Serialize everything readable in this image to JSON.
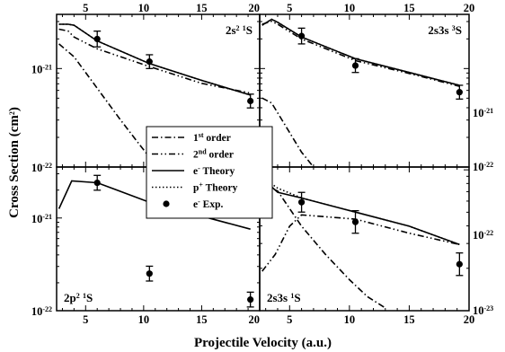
{
  "chart_data": {
    "type": "line",
    "xlabel": "Projectile Velocity (a.u.)",
    "ylabel_parts": [
      "Cross Section (cm",
      "2",
      ")"
    ],
    "x_ticks": [
      "5",
      "10",
      "15",
      "20"
    ],
    "x_range": [
      2.5,
      20
    ],
    "legend": [
      {
        "key": "first",
        "pre": "1",
        "sup": "st",
        "post": " order",
        "style": "dash-dot"
      },
      {
        "key": "second",
        "pre": "2",
        "sup": "nd",
        "post": " order",
        "style": "dash-dot-dot"
      },
      {
        "key": "e_theory",
        "pre": "e",
        "sup": "-",
        "post": " Theory",
        "style": "solid"
      },
      {
        "key": "p_theory",
        "pre": "p",
        "sup": "+",
        "post": " Theory",
        "style": "dotted"
      },
      {
        "key": "e_exp",
        "pre": "e",
        "sup": "-",
        "post": "  Exp.",
        "style": "marker"
      }
    ],
    "panels": [
      {
        "id": "tl",
        "col": 0,
        "row": 0,
        "label": {
          "pre": "2s",
          "sup1": "2",
          "mid": " ",
          "sup2": "1",
          "post": "S"
        },
        "label_pos": "top-right",
        "ylim_exp": [
          -22,
          -20.45
        ],
        "y_tick_labels": [
          {
            "exp": -21,
            "base": "10",
            "sup": "-21"
          }
        ],
        "series": {
          "first": [
            [
              2.7,
              -20.75
            ],
            [
              4,
              -20.88
            ],
            [
              6,
              -21.2
            ],
            [
              8,
              -21.52
            ],
            [
              9.5,
              -21.75
            ],
            [
              10.5,
              -21.9
            ],
            [
              11.3,
              -22.0
            ]
          ],
          "second": [
            [
              2.7,
              -20.6
            ],
            [
              3.5,
              -20.62
            ],
            [
              4,
              -20.68
            ],
            [
              6,
              -20.8
            ],
            [
              10.5,
              -20.98
            ],
            [
              15,
              -21.15
            ],
            [
              19.2,
              -21.25
            ]
          ],
          "e_theory": [
            [
              2.7,
              -20.55
            ],
            [
              3.5,
              -20.55
            ],
            [
              4,
              -20.56
            ],
            [
              6,
              -20.72
            ],
            [
              10.5,
              -20.95
            ],
            [
              15,
              -21.12
            ],
            [
              19.2,
              -21.27
            ]
          ],
          "p_theory": [
            [
              2.7,
              -20.55
            ],
            [
              3.5,
              -20.55
            ],
            [
              4,
              -20.56
            ],
            [
              6,
              -20.72
            ],
            [
              10.5,
              -20.95
            ],
            [
              15,
              -21.12
            ],
            [
              19.2,
              -21.27
            ]
          ],
          "e_exp": [
            {
              "x": 6,
              "y": -20.7,
              "err": 0.08
            },
            {
              "x": 10.5,
              "y": -20.93,
              "err": 0.07
            },
            {
              "x": 19.2,
              "y": -21.33,
              "err": 0.07
            }
          ]
        }
      },
      {
        "id": "tr",
        "col": 1,
        "row": 0,
        "label": {
          "pre": "2s3s ",
          "sup1": "",
          "mid": "",
          "sup2": "3",
          "post": "S"
        },
        "label_pos": "top-right",
        "ylim_exp": [
          -22,
          -20.45
        ],
        "y_tick_labels": [
          {
            "exp": -21,
            "base": "10",
            "sup": "-21"
          }
        ],
        "series": {
          "first": [
            [
              2.7,
              -21.3
            ],
            [
              3.5,
              -21.35
            ],
            [
              4,
              -21.45
            ],
            [
              5,
              -21.65
            ],
            [
              6,
              -21.85
            ],
            [
              7,
              -22.0
            ]
          ],
          "second": [
            [
              2.7,
              -20.55
            ],
            [
              3.5,
              -20.52
            ],
            [
              4,
              -20.55
            ],
            [
              6,
              -20.7
            ],
            [
              10.5,
              -20.92
            ],
            [
              15,
              -21.05
            ],
            [
              19.2,
              -21.18
            ]
          ],
          "e_theory": [
            [
              2.7,
              -20.56
            ],
            [
              3.5,
              -20.5
            ],
            [
              4,
              -20.53
            ],
            [
              6,
              -20.68
            ],
            [
              10.5,
              -20.9
            ],
            [
              15,
              -21.04
            ],
            [
              19.2,
              -21.17
            ]
          ],
          "p_theory": [
            [
              2.7,
              -20.56
            ],
            [
              3.5,
              -20.5
            ],
            [
              4,
              -20.53
            ],
            [
              6,
              -20.68
            ],
            [
              10.5,
              -20.9
            ],
            [
              15,
              -21.04
            ],
            [
              19.2,
              -21.17
            ]
          ],
          "e_exp": [
            {
              "x": 6,
              "y": -20.67,
              "err": 0.08
            },
            {
              "x": 10.5,
              "y": -20.97,
              "err": 0.07
            },
            {
              "x": 19.2,
              "y": -21.24,
              "err": 0.07
            }
          ]
        }
      },
      {
        "id": "bl",
        "col": 0,
        "row": 1,
        "label": {
          "pre": "2p",
          "sup1": "2",
          "mid": " ",
          "sup2": "1",
          "post": "S"
        },
        "label_pos": "bottom-left",
        "ylim_exp": [
          -22,
          -20.45
        ],
        "y_tick_labels": [
          {
            "exp": -21,
            "base": "10",
            "sup": "-21"
          },
          {
            "exp": -22,
            "base": "10",
            "sup": "-22"
          }
        ],
        "series": {
          "e_theory": [
            [
              2.7,
              -20.9
            ],
            [
              3.8,
              -20.6
            ],
            [
              6,
              -20.62
            ],
            [
              10.5,
              -20.83
            ],
            [
              15,
              -20.98
            ],
            [
              19.2,
              -21.12
            ]
          ],
          "e_exp": [
            {
              "x": 6,
              "y": -20.62,
              "err": 0.08
            },
            {
              "x": 10.5,
              "y": -21.6,
              "err": 0.08
            },
            {
              "x": 19.2,
              "y": -21.88,
              "err": 0.08
            }
          ]
        }
      },
      {
        "id": "br",
        "col": 1,
        "row": 1,
        "label": {
          "pre": "2s3s ",
          "sup1": "",
          "mid": "",
          "sup2": "1",
          "post": "S"
        },
        "label_pos": "bottom-left",
        "ylim_exp": [
          -23,
          -21.98
        ],
        "y_tick_labels": [],
        "series": {
          "first": [
            [
              2.7,
              -22.1
            ],
            [
              4,
              -22.15
            ],
            [
              6,
              -22.4
            ],
            [
              8,
              -22.6
            ],
            [
              10,
              -22.78
            ],
            [
              11.5,
              -22.9
            ],
            [
              13,
              -22.98
            ]
          ],
          "second": [
            [
              2.7,
              -22.72
            ],
            [
              3.8,
              -22.6
            ],
            [
              5,
              -22.4
            ],
            [
              6,
              -22.32
            ],
            [
              10.5,
              -22.35
            ],
            [
              15,
              -22.45
            ],
            [
              19.2,
              -22.53
            ]
          ],
          "e_theory": [
            [
              2.7,
              -22.08
            ],
            [
              3.5,
              -22.12
            ],
            [
              4,
              -22.16
            ],
            [
              6,
              -22.2
            ],
            [
              10.5,
              -22.3
            ],
            [
              15,
              -22.4
            ],
            [
              19.2,
              -22.53
            ]
          ],
          "p_theory": [
            [
              2.7,
              -22.05
            ],
            [
              3.5,
              -22.1
            ],
            [
              4,
              -22.13
            ],
            [
              6,
              -22.2
            ],
            [
              10.5,
              -22.3
            ],
            [
              15,
              -22.4
            ],
            [
              19.2,
              -22.53
            ]
          ],
          "e_exp": [
            {
              "x": 6,
              "y": -22.23,
              "err": 0.07
            },
            {
              "x": 10.5,
              "y": -22.37,
              "err": 0.08
            },
            {
              "x": 19.2,
              "y": -22.67,
              "err": 0.08
            }
          ]
        }
      }
    ],
    "right_tick_labels": [
      {
        "row": 0,
        "side": "top-right-mid",
        "base": "10",
        "sup": "-21"
      },
      {
        "row": 0,
        "side": "top-right-bottom",
        "base": "10",
        "sup": "-22"
      },
      {
        "row": 1,
        "side": "bottom-right-mid",
        "base": "10",
        "sup": "-22"
      },
      {
        "row": 1,
        "side": "bottom-right-bottom",
        "base": "10",
        "sup": "-23"
      }
    ]
  }
}
